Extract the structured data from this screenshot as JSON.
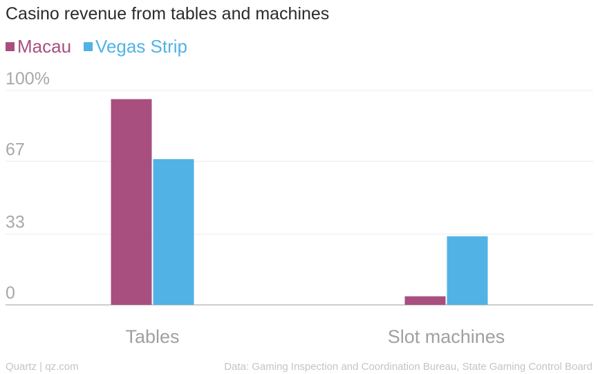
{
  "title": "Casino revenue from tables and machines",
  "legend": [
    {
      "label": "Macau",
      "color": "#a84f7f"
    },
    {
      "label": "Vegas Strip",
      "color": "#51b2e5"
    }
  ],
  "footer": {
    "left": "Quartz | qz.com",
    "right": "Data: Gaming Inspection and Coordination Bureau, State Gaming Control Board"
  },
  "chart_data": {
    "type": "bar",
    "title": "Casino revenue from tables and machines",
    "categories": [
      "Tables",
      "Slot machines"
    ],
    "series": [
      {
        "name": "Macau",
        "color": "#a84f7f",
        "values": [
          96,
          4
        ]
      },
      {
        "name": "Vegas Strip",
        "color": "#51b2e5",
        "values": [
          68,
          32
        ]
      }
    ],
    "y_ticks": [
      0,
      33,
      67,
      100
    ],
    "y_tick_labels": [
      "0",
      "33",
      "67",
      "100%"
    ],
    "ylim": [
      0,
      100
    ],
    "grid": true,
    "legend_position": "top-left",
    "xlabel": "",
    "ylabel": ""
  }
}
